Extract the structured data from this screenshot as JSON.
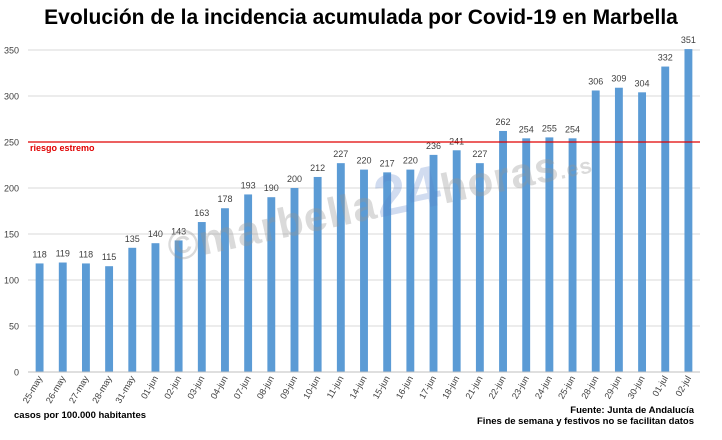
{
  "chart_data": {
    "type": "bar",
    "title": "Evolución de la incidencia acumulada por Covid-19 en Marbella",
    "categories": [
      "25-may",
      "26-may",
      "27-may",
      "28-may",
      "31-may",
      "01-jun",
      "02-jun",
      "03-jun",
      "04-jun",
      "07-jun",
      "08-jun",
      "09-jun",
      "10-jun",
      "11-jun",
      "14-jun",
      "15-jun",
      "16-jun",
      "17-jun",
      "18-jun",
      "21-jun",
      "22-jun",
      "23-jun",
      "24-jun",
      "25-jun",
      "28-jun",
      "29-jun",
      "30-jun",
      "01-jul",
      "02-jul"
    ],
    "values": [
      118,
      119,
      118,
      115,
      135,
      140,
      143,
      163,
      178,
      193,
      190,
      200,
      212,
      227,
      220,
      217,
      220,
      236,
      241,
      227,
      262,
      254,
      255,
      254,
      306,
      309,
      304,
      332,
      351
    ],
    "ylim": [
      0,
      350
    ],
    "yticks": [
      0,
      50,
      100,
      150,
      200,
      250,
      300,
      350
    ],
    "grid": true,
    "threshold": {
      "value": 250,
      "label": "riesgo estremo",
      "color": "#e00000"
    },
    "bar_color": "#5b9bd5"
  },
  "footer": {
    "left": "casos por 100.000 habitantes",
    "source": "Fuente: Junta de Andalucía",
    "note": "Fines de semana y festivos no se facilitan datos"
  },
  "watermark": {
    "prefix": "©marbella",
    "number": "24",
    "suffix": "horas",
    "tld": ".es"
  }
}
